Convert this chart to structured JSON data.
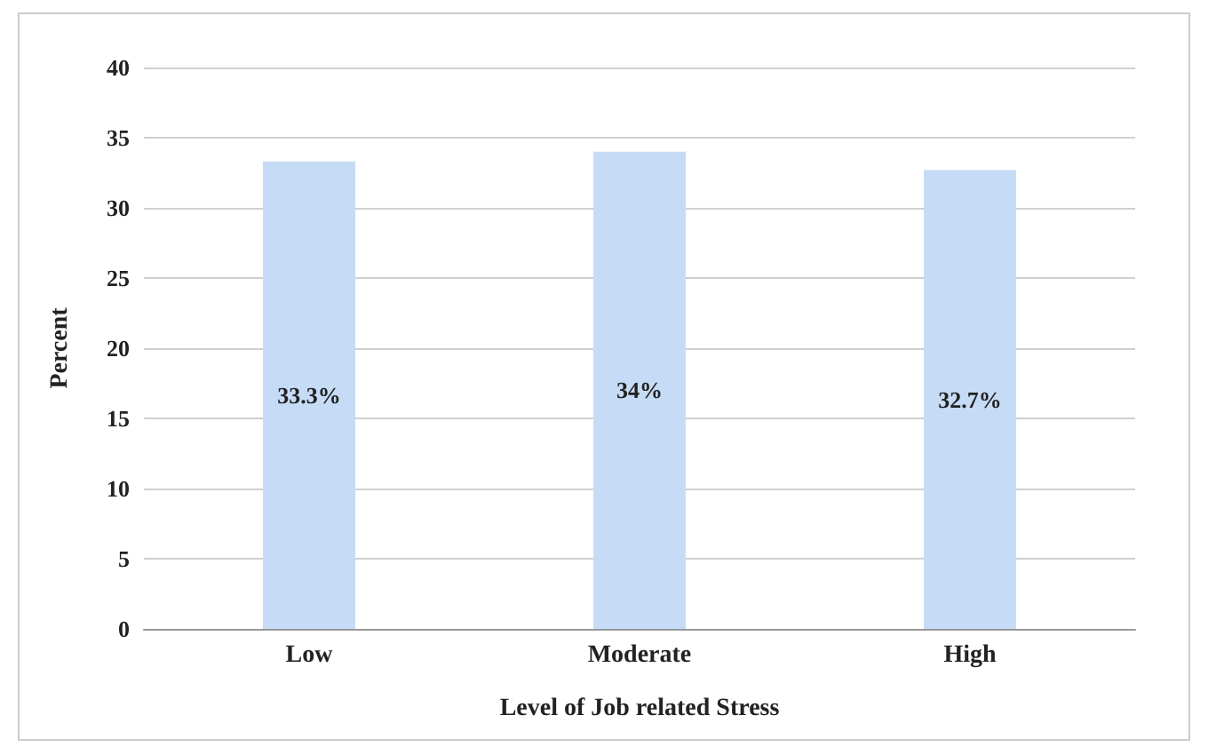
{
  "chart_data": {
    "type": "bar",
    "xlabel": "Level of Job related Stress",
    "ylabel": "Percent",
    "categories": [
      "Low",
      "Moderate",
      "High"
    ],
    "values": [
      33.3,
      34,
      32.7
    ],
    "value_labels": [
      "33.3%",
      "34%",
      "32.7%"
    ],
    "color": "#c6dcf6",
    "ylim": [
      0,
      40
    ],
    "yticks": [
      0,
      5,
      10,
      15,
      20,
      25,
      30,
      35,
      40
    ],
    "grid": "y"
  }
}
